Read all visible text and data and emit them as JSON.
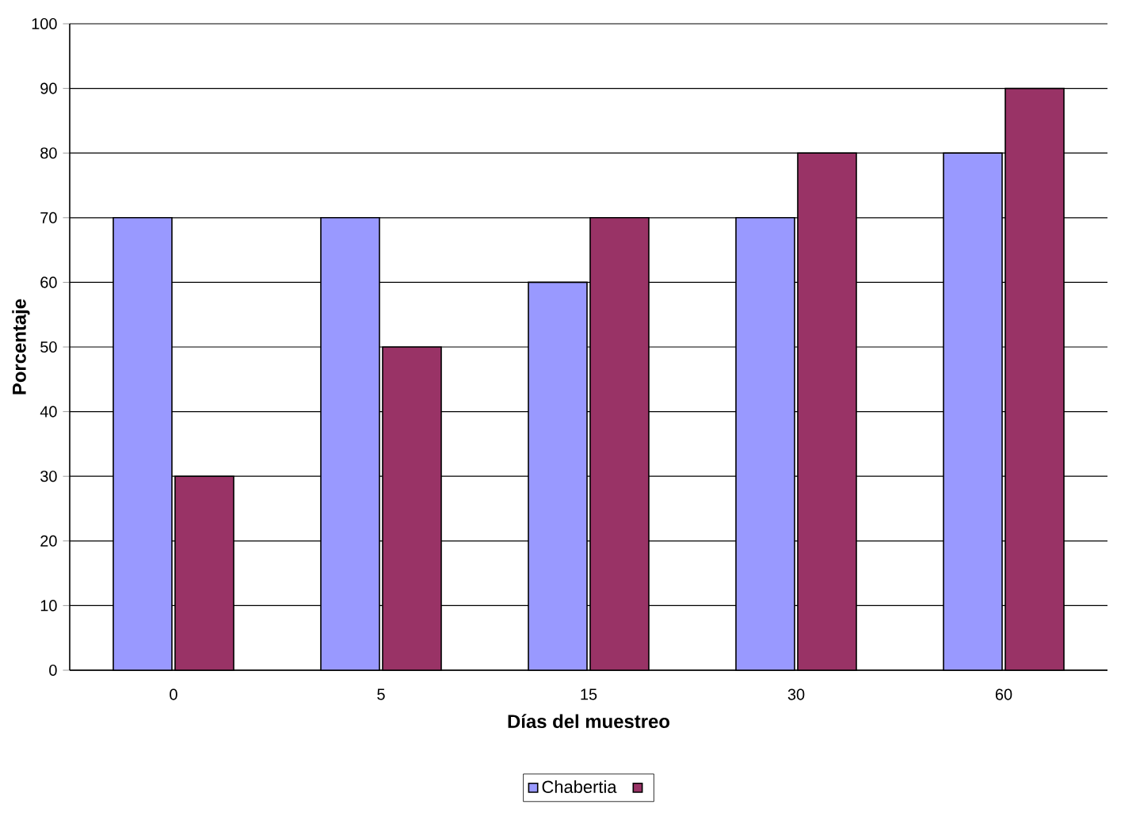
{
  "chart_data": {
    "type": "bar",
    "xlabel": "Días del muestreo",
    "ylabel": "Porcentaje",
    "categories": [
      "0",
      "5",
      "15",
      "30",
      "60"
    ],
    "series": [
      {
        "name": "Chabertia",
        "color": "#9999ff",
        "values": [
          70,
          70,
          60,
          70,
          80
        ]
      },
      {
        "color": "#993366",
        "values": [
          30,
          50,
          70,
          80,
          90
        ]
      }
    ],
    "ylim": [
      0,
      100
    ],
    "yticks": [
      0,
      10,
      20,
      30,
      40,
      50,
      60,
      70,
      80,
      90,
      100
    ],
    "grid": "y",
    "legend": "bottom"
  }
}
